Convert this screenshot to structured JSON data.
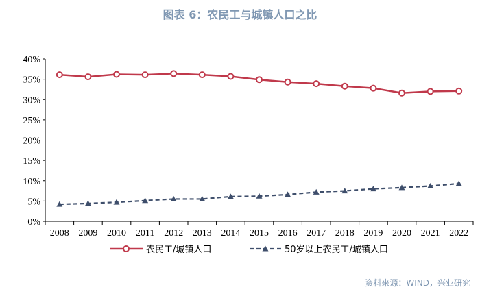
{
  "title": "图表 6：农民工与城镇人口之比",
  "source": "资料来源：WIND，兴业研究",
  "colors": {
    "series1": "#c0394b",
    "series2": "#3e4e6b",
    "title": "#7f97b2"
  },
  "chart_data": {
    "type": "line",
    "title": "图表 6：农民工与城镇人口之比",
    "xlabel": "",
    "ylabel": "",
    "ylim": [
      0,
      40
    ],
    "y_ticks": [
      "0%",
      "5%",
      "10%",
      "15%",
      "20%",
      "25%",
      "30%",
      "35%",
      "40%"
    ],
    "y_tick_values": [
      0,
      5,
      10,
      15,
      20,
      25,
      30,
      35,
      40
    ],
    "categories": [
      "2008",
      "2009",
      "2010",
      "2011",
      "2012",
      "2013",
      "2014",
      "2015",
      "2016",
      "2017",
      "2018",
      "2019",
      "2020",
      "2021",
      "2022"
    ],
    "legend_position": "bottom",
    "series": [
      {
        "name": "农民工/城镇人口",
        "style": "solid-circle",
        "values": [
          36.1,
          35.6,
          36.2,
          36.1,
          36.4,
          36.1,
          35.7,
          34.9,
          34.3,
          33.9,
          33.3,
          32.8,
          31.6,
          32.0,
          32.1
        ]
      },
      {
        "name": "50岁以上农民工/城镇人口",
        "style": "dashed-triangle",
        "values": [
          4.2,
          4.4,
          4.7,
          5.1,
          5.5,
          5.5,
          6.1,
          6.2,
          6.6,
          7.2,
          7.5,
          8.0,
          8.3,
          8.7,
          9.3
        ]
      }
    ]
  }
}
